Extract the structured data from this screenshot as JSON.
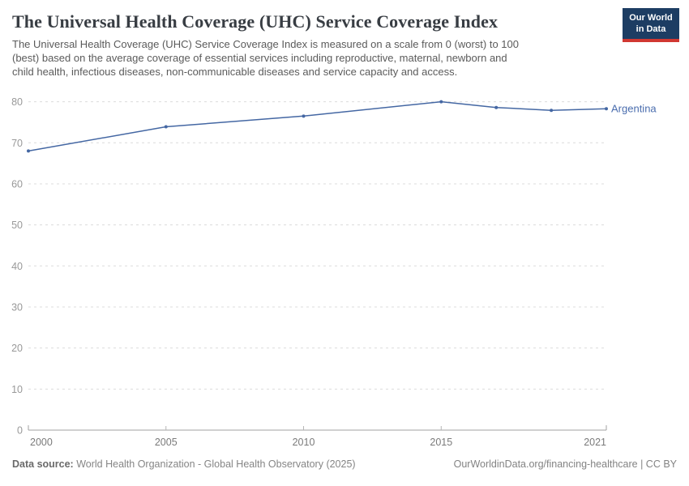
{
  "header": {
    "title": "The Universal Health Coverage (UHC) Service Coverage Index",
    "subtitle": "The Universal Health Coverage (UHC) Service Coverage Index is measured on a scale from 0 (worst) to 100 (best) based on the average coverage of essential services including reproductive, maternal, newborn and child health, infectious diseases, non-communicable diseases and service capacity and access.",
    "logo": {
      "line1": "Our World",
      "line2": "in Data"
    }
  },
  "chart_data": {
    "type": "line",
    "title": "The Universal Health Coverage (UHC) Service Coverage Index",
    "series": [
      {
        "name": "Argentina",
        "x": [
          2000,
          2005,
          2010,
          2015,
          2017,
          2019,
          2021
        ],
        "values": [
          68,
          73.9,
          76.5,
          80,
          78.6,
          77.9,
          78.3
        ]
      }
    ],
    "xlabel": "",
    "ylabel": "",
    "xlim": [
      2000,
      2021
    ],
    "ylim": [
      0,
      80
    ],
    "yticks": [
      0,
      10,
      20,
      30,
      40,
      50,
      60,
      70,
      80
    ],
    "xticks": [
      2000,
      2005,
      2010,
      2015,
      2021
    ],
    "grid": "horizontal-dashed",
    "legend_position": "end-of-line-label"
  },
  "footer": {
    "datasource_label": "Data source:",
    "datasource_text": " World Health Organization - Global Health Observatory (2025)",
    "credit": "OurWorldinData.org/financing-healthcare | CC BY"
  },
  "colors": {
    "line": "#4467a3",
    "entity_label": "#4a6dae",
    "logo_bg": "#1d3d63",
    "logo_accent": "#d13832",
    "grid": "#dcdcdc",
    "axis": "#a1a1a1",
    "tick": "#b5b5b5",
    "y_tick_label": "#999999",
    "x_tick_label": "#7a7a7a"
  }
}
